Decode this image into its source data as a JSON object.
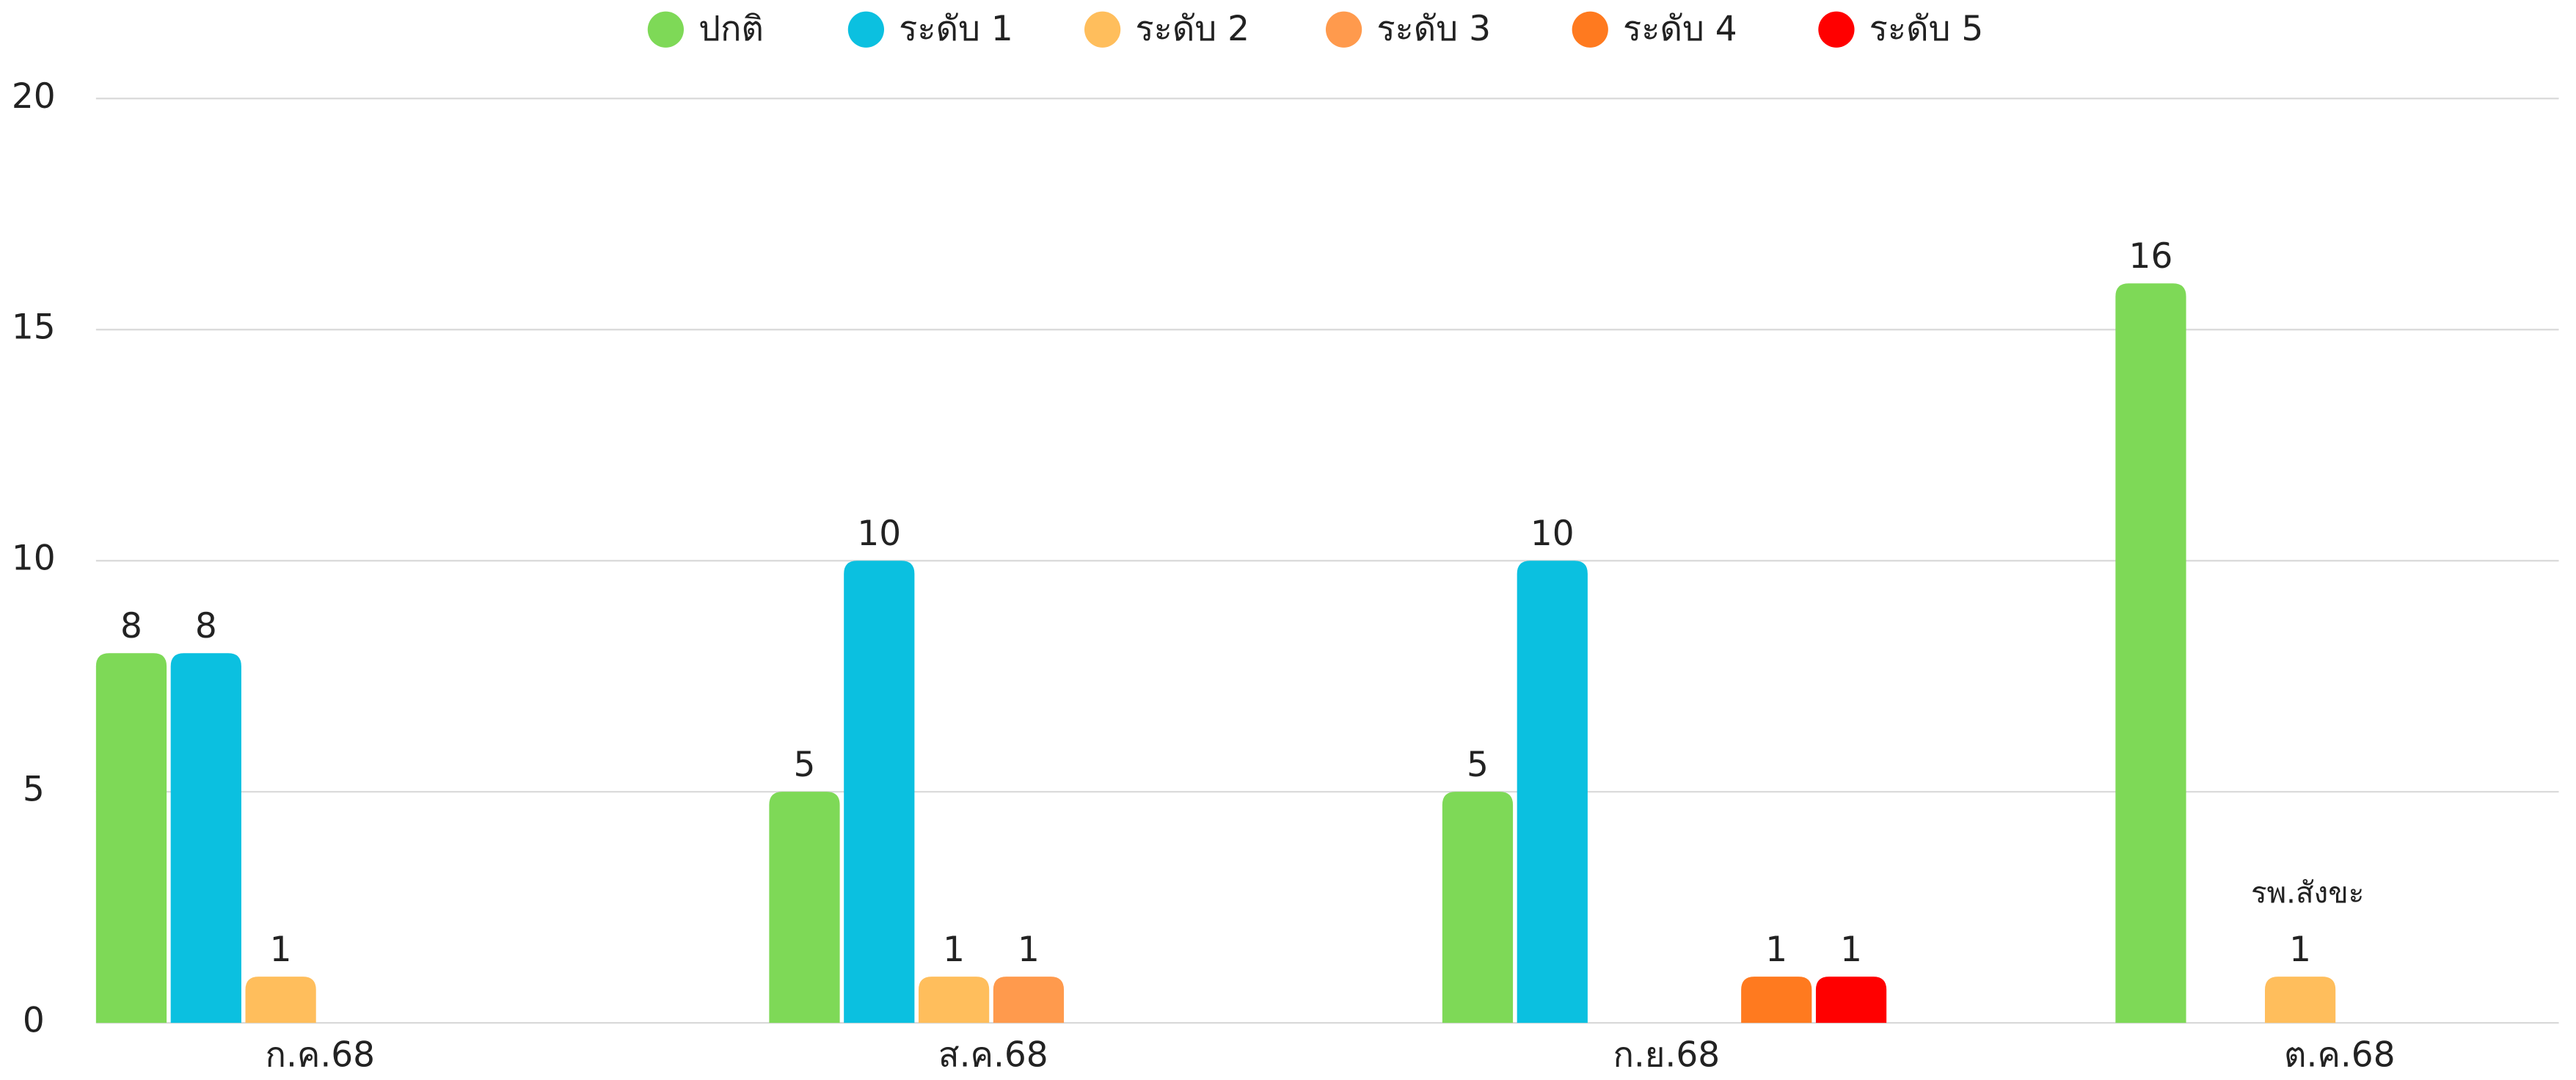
{
  "chart_data": {
    "type": "bar",
    "categories": [
      "ก.ค.68",
      "ส.ค.68",
      "ก.ย.68",
      "ต.ค.68"
    ],
    "series": [
      {
        "name": "ปกติ",
        "color": "#7ed957",
        "values": [
          8,
          5,
          5,
          16
        ]
      },
      {
        "name": "ระดับ 1",
        "color": "#0bc0e0",
        "values": [
          8,
          10,
          10,
          null
        ]
      },
      {
        "name": "ระดับ 2",
        "color": "#ffbe5c",
        "values": [
          1,
          1,
          null,
          1
        ]
      },
      {
        "name": "ระดับ 3",
        "color": "#ff9a4d",
        "values": [
          null,
          1,
          null,
          null
        ]
      },
      {
        "name": "ระดับ 4",
        "color": "#ff7a1f",
        "values": [
          null,
          null,
          1,
          null
        ]
      },
      {
        "name": "ระดับ 5",
        "color": "#ff0000",
        "values": [
          null,
          null,
          1,
          null
        ]
      }
    ],
    "annotation": "รพ.สังขะ",
    "ylim": [
      0,
      20
    ],
    "yticks": [
      0,
      5,
      10,
      15,
      20
    ],
    "grid": true,
    "legend": "top"
  }
}
